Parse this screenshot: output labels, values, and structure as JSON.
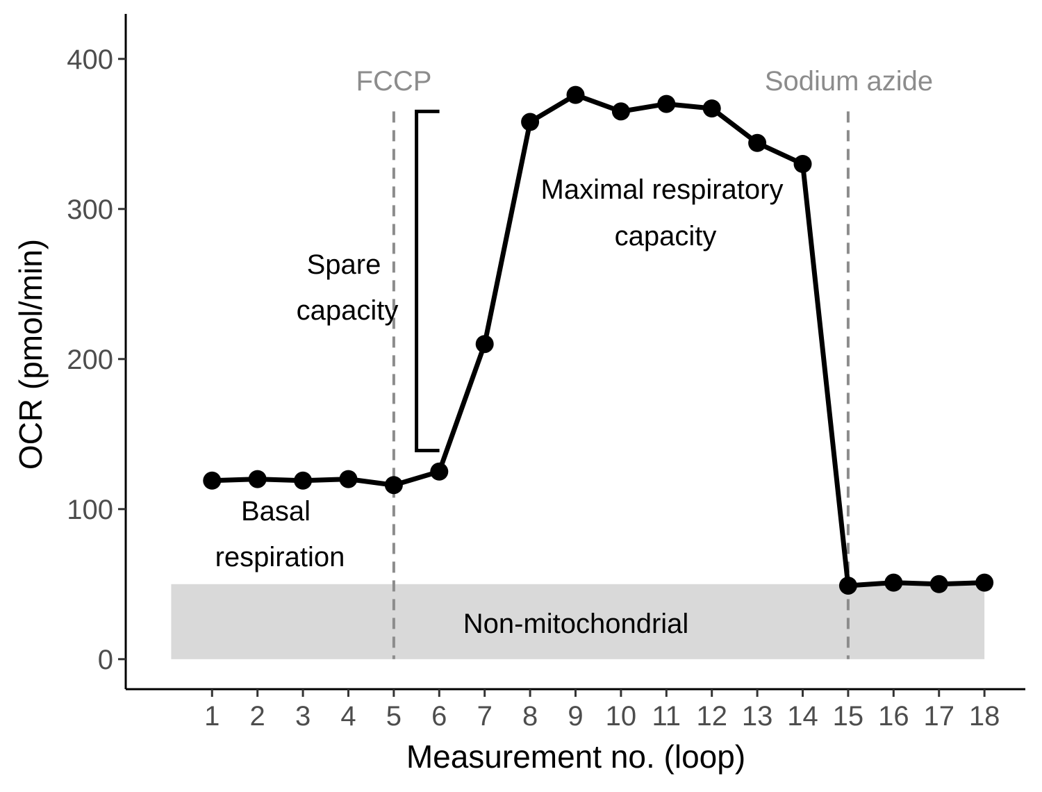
{
  "chart_data": {
    "type": "line",
    "title": "",
    "xlabel": "Measurement no. (loop)",
    "ylabel": "OCR (pmol/min)",
    "x": [
      1,
      2,
      3,
      4,
      5,
      6,
      7,
      8,
      9,
      10,
      11,
      12,
      13,
      14,
      15,
      16,
      17,
      18
    ],
    "series": [
      {
        "values": [
          119,
          120,
          119,
          120,
          116,
          125,
          210,
          358,
          376,
          365,
          370,
          367,
          344,
          330,
          49,
          51,
          50,
          51
        ],
        "color": "#000000"
      }
    ],
    "xlim": [
      -0.9,
      18.9
    ],
    "ylim": [
      -20,
      430
    ],
    "xticks": [
      "1",
      "2",
      "3",
      "4",
      "5",
      "6",
      "7",
      "8",
      "9",
      "10",
      "11",
      "12",
      "13",
      "14",
      "15",
      "16",
      "17",
      "18"
    ],
    "yticks": [
      "0",
      "100",
      "200",
      "300",
      "400"
    ],
    "grid": false,
    "legend": "none",
    "shaded_band": {
      "x_start": 0.1,
      "x_end": 18,
      "y_start": 0,
      "y_end": 50,
      "color": "#d9d9d9",
      "label": "Non-mitochondrial"
    },
    "vlines": [
      {
        "x": 5,
        "label": "FCCP",
        "color": "#8c8c8c"
      },
      {
        "x": 15,
        "label": "Sodium azide",
        "color": "#8c8c8c"
      }
    ],
    "bracket": {
      "x": 5.5,
      "y_low": 139,
      "y_high": 365
    },
    "annotations": [
      {
        "lines": [
          "Basal",
          "respiration"
        ]
      },
      {
        "lines": [
          "Spare",
          "capacity"
        ]
      },
      {
        "lines": [
          "Maximal respiratory",
          "capacity"
        ]
      }
    ]
  }
}
